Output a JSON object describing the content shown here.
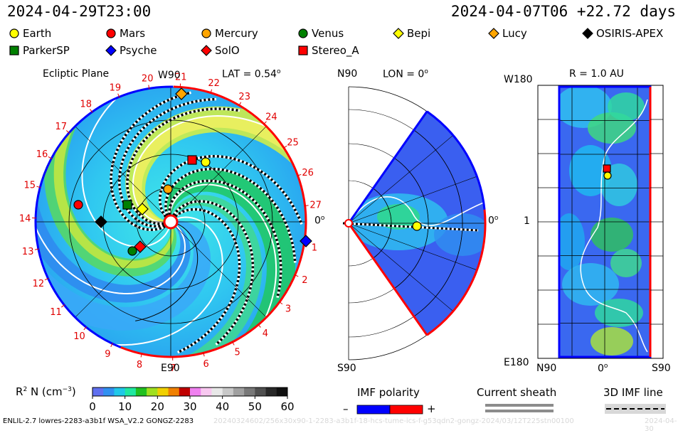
{
  "header": {
    "left_time": "2024-04-29T23:00",
    "right_time": "2024-04-07T06 +22.72 days"
  },
  "legend": [
    {
      "name": "Earth",
      "shape": "circle",
      "color": "#ffff00"
    },
    {
      "name": "Mars",
      "shape": "circle",
      "color": "#ff0000"
    },
    {
      "name": "Mercury",
      "shape": "circle",
      "color": "#ffa500"
    },
    {
      "name": "Venus",
      "shape": "circle",
      "color": "#008000"
    },
    {
      "name": "Bepi",
      "shape": "diamond",
      "color": "#ffff00"
    },
    {
      "name": "Lucy",
      "shape": "diamond",
      "color": "#ffa500"
    },
    {
      "name": "OSIRIS-APEX",
      "shape": "diamond",
      "color": "#000000"
    },
    {
      "name": "ParkerSP",
      "shape": "square",
      "color": "#008000"
    },
    {
      "name": "Psyche",
      "shape": "diamond",
      "color": "#0000ff"
    },
    {
      "name": "SolO",
      "shape": "diamond",
      "color": "#ff0000"
    },
    {
      "name": "Stereo_A",
      "shape": "square",
      "color": "#ff0000"
    }
  ],
  "panel_ecliptic": {
    "title": "Ecliptic Plane",
    "lat_label": "LAT = 0.54",
    "lat_sup": "o",
    "top_label": "W90",
    "bottom_label": "E90",
    "right_label": "0",
    "right_sup": "o",
    "carrington_days": [
      "1",
      "2",
      "3",
      "4",
      "5",
      "6",
      "7",
      "8",
      "9",
      "10",
      "11",
      "12",
      "13",
      "14",
      "15",
      "16",
      "17",
      "18",
      "19",
      "20",
      "21",
      "22",
      "23",
      "24",
      "25",
      "26",
      "27"
    ]
  },
  "panel_meridional": {
    "top_label": "N90",
    "lon_label": "LON = 0",
    "lon_sup": "o",
    "right_label": "0",
    "right_sup": "o",
    "bottom_label": "S90"
  },
  "panel_r": {
    "title": "R = 1.0 AU",
    "top_left": "W180",
    "mid_left": "1",
    "bottom_left": "E180",
    "bottom_n": "N90",
    "bottom_mid": "0",
    "bottom_mid_sup": "o",
    "bottom_s": "S90"
  },
  "colorbar": {
    "label": "R",
    "label_sup": "2",
    "label_rest": " N (cm",
    "label_sup2": "−3",
    "label_end": ")",
    "ticks": [
      "0",
      "10",
      "20",
      "30",
      "40",
      "50",
      "60"
    ],
    "min": 0,
    "max": 60
  },
  "imf_polarity": {
    "label": "IMF polarity",
    "minus": "–",
    "plus": "+",
    "neg_color": "#0000ff",
    "pos_color": "#ff0000"
  },
  "current_sheath": {
    "label": "Current sheath"
  },
  "imf_line": {
    "label": "3D IMF line"
  },
  "footer": {
    "model": "ENLIL-2.7 lowres-2283-a3b1f WSA_V2.2 GONGZ-2283",
    "faint": "20240324602/256x30x90-1-2283-a3b1f-18-hcs-tume-ics-f-g53qdn2-gongz-2024/03/12T225stn00100",
    "faint_right": "2024-04-30"
  }
}
